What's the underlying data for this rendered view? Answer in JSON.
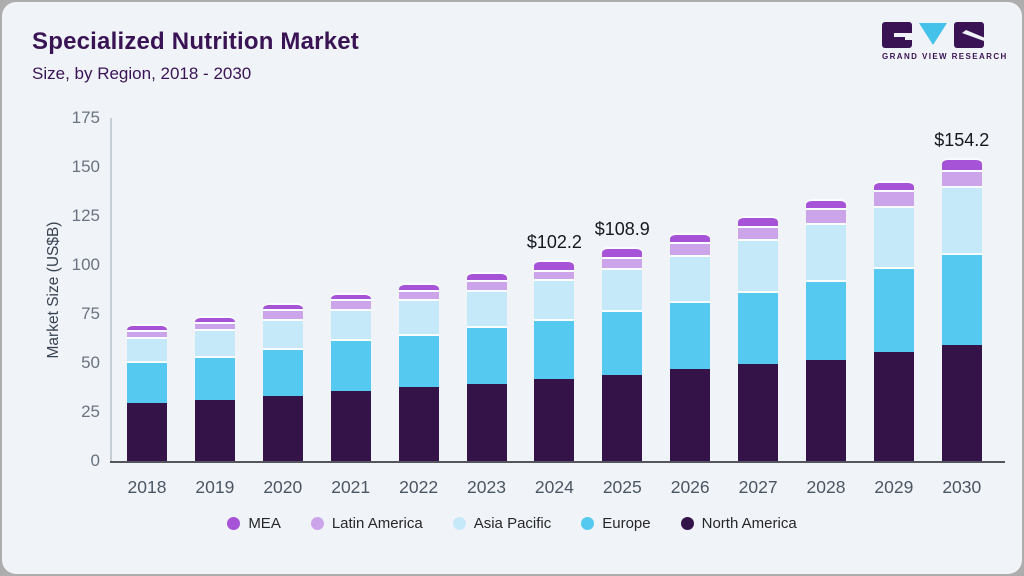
{
  "header": {
    "title": "Specialized Nutrition Market",
    "subtitle": "Size, by Region, 2018 - 2030"
  },
  "logo": {
    "name": "Grand View Research",
    "text": "GRAND VIEW RESEARCH",
    "brand_dark": "#3a1355",
    "brand_cyan": "#45c2ea"
  },
  "chart_data": {
    "type": "bar",
    "stacked": true,
    "title": "Specialized Nutrition Market",
    "subtitle": "Size, by Region, 2018 - 2030",
    "xlabel": "",
    "ylabel": "Market Size (US$B)",
    "ylim": [
      0,
      175
    ],
    "yticks": [
      0,
      25,
      50,
      75,
      100,
      125,
      150,
      175
    ],
    "grid": false,
    "legend_position": "bottom",
    "categories": [
      "2018",
      "2019",
      "2020",
      "2021",
      "2022",
      "2023",
      "2024",
      "2025",
      "2026",
      "2027",
      "2028",
      "2029",
      "2030"
    ],
    "series": [
      {
        "name": "North America",
        "color": "#331348",
        "values": [
          29.7,
          31.0,
          33.1,
          35.5,
          37.5,
          39.3,
          41.6,
          43.7,
          46.7,
          49.2,
          51.7,
          55.6,
          59.3
        ]
      },
      {
        "name": "Europe",
        "color": "#56c9f1",
        "values": [
          21.4,
          22.4,
          24.7,
          26.4,
          27.1,
          29.4,
          30.8,
          33.1,
          34.9,
          37.3,
          40.5,
          43.3,
          46.6
        ]
      },
      {
        "name": "Asia Pacific",
        "color": "#c6e9fa",
        "values": [
          12.2,
          13.6,
          14.6,
          15.4,
          17.7,
          18.3,
          20.2,
          21.7,
          23.5,
          26.6,
          29.0,
          30.8,
          34.0
        ]
      },
      {
        "name": "Latin America",
        "color": "#cba4e9",
        "values": [
          3.4,
          3.7,
          4.8,
          5.0,
          4.7,
          5.1,
          4.9,
          5.4,
          6.4,
          6.7,
          7.7,
          8.2,
          8.5
        ]
      },
      {
        "name": "MEA",
        "color": "#a653d8",
        "values": [
          3.1,
          3.1,
          3.3,
          3.2,
          3.9,
          4.2,
          4.7,
          5.0,
          4.8,
          5.0,
          4.6,
          4.7,
          5.8
        ]
      }
    ],
    "bar_totals": [
      69.8,
      73.8,
      80.5,
      85.5,
      90.9,
      96.3,
      102.2,
      108.9,
      116.3,
      124.8,
      133.5,
      142.6,
      154.2
    ],
    "bar_labels": {
      "2024": "$102.2",
      "2025": "$108.9",
      "2030": "$154.2"
    },
    "legend": [
      "MEA",
      "Latin America",
      "Asia Pacific",
      "Europe",
      "North America"
    ]
  }
}
